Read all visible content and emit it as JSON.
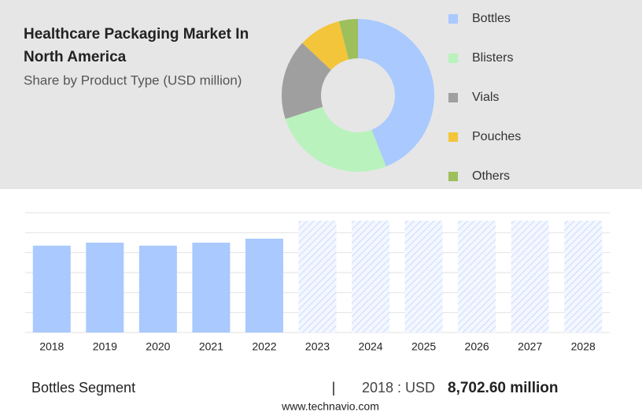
{
  "chart_data": [
    {
      "type": "donut",
      "title": "Healthcare Packaging Market In North America",
      "subtitle": "Share by Product Type (USD million)",
      "categories": [
        "Bottles",
        "Blisters",
        "Vials",
        "Pouches",
        "Others"
      ],
      "values": [
        44,
        26,
        17,
        9,
        4
      ],
      "colors": [
        "#a9c9ff",
        "#b9f2bd",
        "#9f9f9f",
        "#f3c53a",
        "#9dbf5c"
      ],
      "legend": "right"
    },
    {
      "type": "bar",
      "categories": [
        "2018",
        "2019",
        "2020",
        "2021",
        "2022",
        "2023",
        "2024",
        "2025",
        "2026",
        "2027",
        "2028"
      ],
      "series": [
        {
          "color": "#a9c9ff",
          "values": [
            8702.6,
            9000,
            8700,
            9000,
            9400,
            null,
            null,
            null,
            null,
            null,
            null
          ]
        },
        {
          "color": "#a9c9ff",
          "pattern": "hatch",
          "values": [
            null,
            null,
            null,
            null,
            null,
            11200,
            11200,
            11200,
            11200,
            11200,
            11200
          ]
        }
      ],
      "ylim": [
        0,
        12000
      ],
      "yticks": [
        0,
        2000,
        4000,
        6000,
        8000,
        10000,
        12000
      ],
      "ytick_labels": false,
      "grid": true
    }
  ],
  "footer": {
    "segment": "Bottles Segment",
    "separator": "|",
    "year_label": "2018 : USD",
    "value": "8,702.60 million",
    "website": "www.technavio.com"
  }
}
